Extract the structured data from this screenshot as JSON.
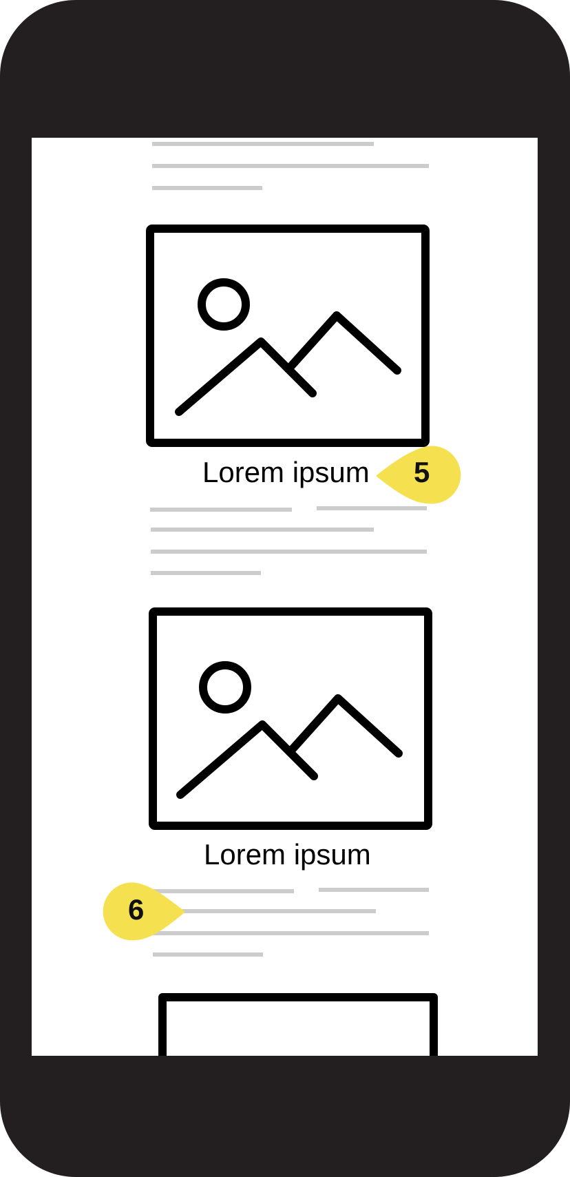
{
  "device": {
    "frame_color": "#231f20",
    "screen_color": "#ffffff"
  },
  "content": {
    "placeholder_line_color": "#cccccc",
    "image_placeholders": [
      {
        "icon": "image-placeholder-icon",
        "caption": "Lorem ipsum"
      },
      {
        "icon": "image-placeholder-icon",
        "caption": "Lorem ipsum"
      },
      {
        "icon": "image-placeholder-icon",
        "caption": ""
      }
    ]
  },
  "callouts": [
    {
      "number": "5",
      "color": "#f5e04f"
    },
    {
      "number": "6",
      "color": "#f5e04f"
    }
  ]
}
